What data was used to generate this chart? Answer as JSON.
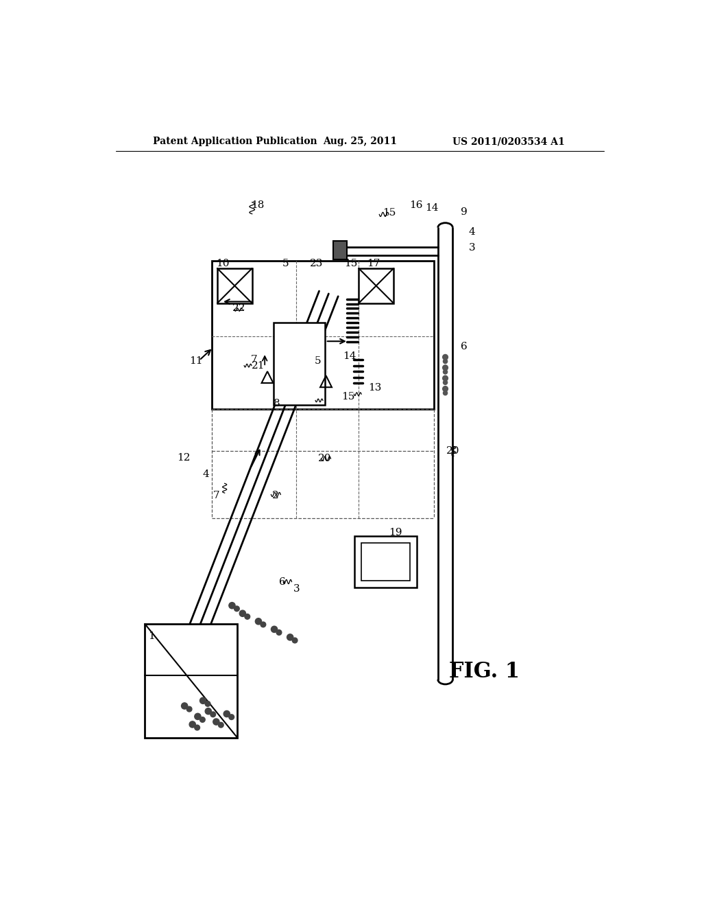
{
  "bg_color": "#ffffff",
  "line_color": "#000000",
  "header_left": "Patent Application Publication",
  "header_center": "Aug. 25, 2011",
  "header_right": "US 2011/0203534 A1",
  "fig_label": "FIG. 1"
}
